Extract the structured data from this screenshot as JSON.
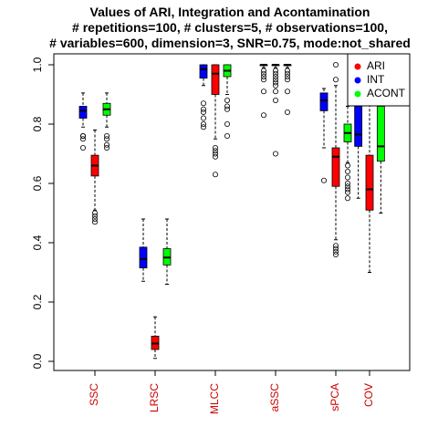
{
  "chart_data": {
    "type": "boxplot",
    "title_lines": [
      "Values of ARI, Integration and Acontamination",
      "# repetitions=100, # clusters=5, # observations=100,",
      "# variables=600, dimension=3, SNR=0.75, mode:not_shared"
    ],
    "xlabel": "",
    "ylabel": "",
    "ylim": [
      -0.03,
      1.04
    ],
    "yticks": [
      0.0,
      0.2,
      0.4,
      0.6,
      0.8,
      1.0
    ],
    "ytick_labels": [
      "0.0",
      "0.2",
      "0.4",
      "0.6",
      "0.8",
      "1.0"
    ],
    "categories": [
      "SSC",
      "LRSC",
      "MLCC",
      "aSSC",
      "sPCA",
      "COV"
    ],
    "legend": {
      "position": "top-right",
      "entries": [
        {
          "name": "ARI",
          "color": "#ff0000"
        },
        {
          "name": "INT",
          "color": "#0000ff"
        },
        {
          "name": "ACONT",
          "color": "#00ff00"
        }
      ]
    },
    "series": [
      {
        "name": "INT",
        "color": "#0000ff",
        "boxes": [
          {
            "category": "SSC",
            "whisker_low": 0.79,
            "q1": 0.82,
            "median": 0.845,
            "q3": 0.86,
            "whisker_high": 0.905,
            "outliers": [
              0.72,
              0.75,
              0.76,
              0.76
            ]
          },
          {
            "category": "LRSC",
            "whisker_low": 0.27,
            "q1": 0.315,
            "median": 0.345,
            "q3": 0.385,
            "whisker_high": 0.48,
            "outliers": []
          },
          {
            "category": "MLCC",
            "whisker_low": 0.93,
            "q1": 0.955,
            "median": 0.985,
            "q3": 1.0,
            "whisker_high": 1.0,
            "outliers": [
              0.79,
              0.8,
              0.82,
              0.84,
              0.85,
              0.87
            ]
          },
          {
            "category": "aSSC",
            "whisker_low": 0.99,
            "q1": 1.0,
            "median": 1.0,
            "q3": 1.0,
            "whisker_high": 1.0,
            "outliers": [
              0.83,
              0.91,
              0.95,
              0.96,
              0.97,
              0.98
            ]
          },
          {
            "category": "sPCA",
            "whisker_low": 0.72,
            "q1": 0.845,
            "median": 0.88,
            "q3": 0.905,
            "whisker_high": 0.92,
            "outliers": [
              0.61
            ]
          },
          {
            "category": "COV",
            "whisker_low": 0.55,
            "q1": 0.725,
            "median": 0.765,
            "q3": 0.86,
            "whisker_high": 0.86,
            "outliers": []
          }
        ]
      },
      {
        "name": "ARI",
        "color": "#ff0000",
        "boxes": [
          {
            "category": "SSC",
            "whisker_low": 0.51,
            "q1": 0.625,
            "median": 0.66,
            "q3": 0.695,
            "whisker_high": 0.78,
            "outliers": [
              0.47,
              0.48,
              0.49,
              0.5
            ]
          },
          {
            "category": "LRSC",
            "whisker_low": 0.01,
            "q1": 0.04,
            "median": 0.06,
            "q3": 0.085,
            "whisker_high": 0.15,
            "outliers": []
          },
          {
            "category": "MLCC",
            "whisker_low": 0.75,
            "q1": 0.9,
            "median": 0.97,
            "q3": 1.0,
            "whisker_high": 1.0,
            "outliers": [
              0.63,
              0.69,
              0.7,
              0.71,
              0.72
            ]
          },
          {
            "category": "aSSC",
            "whisker_low": 0.99,
            "q1": 1.0,
            "median": 1.0,
            "q3": 1.0,
            "whisker_high": 1.0,
            "outliers": [
              0.7,
              0.88,
              0.91,
              0.93,
              0.94,
              0.95,
              0.96,
              0.97,
              0.98
            ]
          },
          {
            "category": "sPCA",
            "whisker_low": 0.41,
            "q1": 0.59,
            "median": 0.69,
            "q3": 0.72,
            "whisker_high": 0.93,
            "outliers": [
              0.36,
              0.37,
              0.38,
              0.39,
              0.95,
              1.0
            ]
          },
          {
            "category": "COV",
            "whisker_low": 0.3,
            "q1": 0.51,
            "median": 0.58,
            "q3": 0.695,
            "whisker_high": 0.99,
            "outliers": []
          }
        ]
      },
      {
        "name": "ACONT",
        "color": "#00ff00",
        "boxes": [
          {
            "category": "SSC",
            "whisker_low": 0.79,
            "q1": 0.83,
            "median": 0.85,
            "q3": 0.87,
            "whisker_high": 0.905,
            "outliers": [
              0.72,
              0.73,
              0.75,
              0.76
            ]
          },
          {
            "category": "LRSC",
            "whisker_low": 0.26,
            "q1": 0.325,
            "median": 0.35,
            "q3": 0.38,
            "whisker_high": 0.48,
            "outliers": []
          },
          {
            "category": "MLCC",
            "whisker_low": 0.9,
            "q1": 0.96,
            "median": 0.98,
            "q3": 1.0,
            "whisker_high": 1.0,
            "outliers": [
              0.76,
              0.8,
              0.85,
              0.86,
              0.88
            ]
          },
          {
            "category": "aSSC",
            "whisker_low": 0.99,
            "q1": 1.0,
            "median": 1.0,
            "q3": 1.0,
            "whisker_high": 1.0,
            "outliers": [
              0.84,
              0.91,
              0.95,
              0.96,
              0.97,
              0.98
            ]
          },
          {
            "category": "sPCA",
            "whisker_low": 0.67,
            "q1": 0.74,
            "median": 0.77,
            "q3": 0.8,
            "whisker_high": 0.86,
            "outliers": [
              0.55,
              0.57,
              0.58,
              0.59,
              0.6,
              0.62,
              0.64,
              0.66
            ]
          },
          {
            "category": "COV",
            "whisker_low": 0.5,
            "q1": 0.675,
            "median": 0.725,
            "q3": 0.86,
            "whisker_high": 0.86,
            "outliers": []
          }
        ]
      }
    ]
  }
}
